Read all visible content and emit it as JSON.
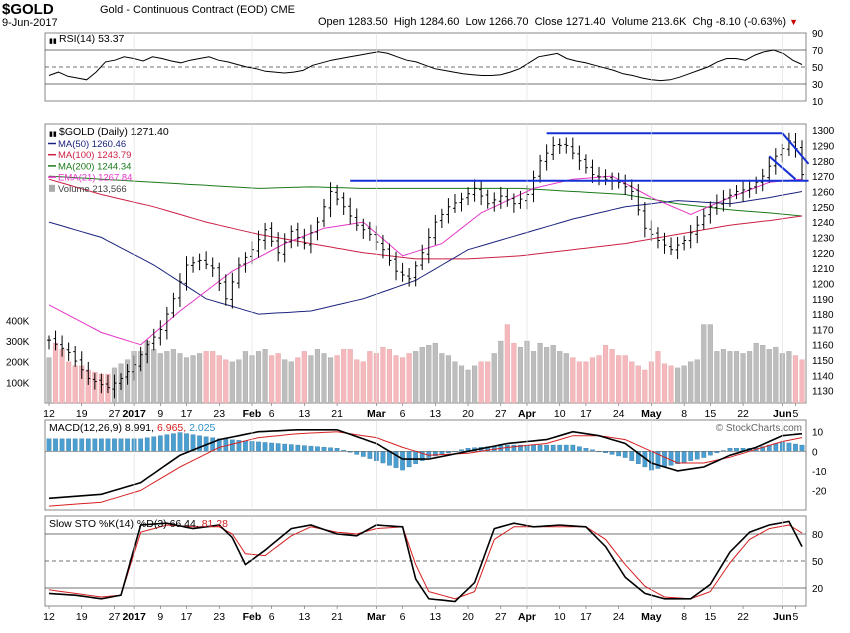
{
  "header": {
    "symbol": "$GOLD",
    "description": "Gold - Continuous Contract (EOD)",
    "exchange": "CME",
    "date": "9-Jun-2017",
    "open_label": "Open",
    "open": "1283.50",
    "high_label": "High",
    "high": "1284.60",
    "low_label": "Low",
    "low": "1266.70",
    "close_label": "Close",
    "close": "1271.40",
    "volume_label": "Volume",
    "volume": "213.6K",
    "chg_label": "Chg",
    "chg": "-8.10 (-0.63%)"
  },
  "watermark": "© StockCharts.com",
  "colors": {
    "price": "#000000",
    "ma50": "#1a237e",
    "ma100": "#cc1f43",
    "ma200": "#1b7a1b",
    "ema21": "#e535c8",
    "volume_up": "#bdbdbd",
    "volume_down": "#f4b8bd",
    "trendline": "#1531d6",
    "macd_hist": "#4a9fd0"
  },
  "chart_data": [
    {
      "type": "line",
      "name_panel": "rsi",
      "title": "RSI(14) 53.37",
      "ylim": [
        10,
        90
      ],
      "y_ticks": [
        90,
        70,
        50,
        30,
        10
      ],
      "guides": [
        70,
        50,
        30
      ],
      "values": [
        40,
        44,
        39,
        37,
        35,
        44,
        56,
        58,
        62,
        60,
        57,
        62,
        60,
        57,
        55,
        58,
        60,
        62,
        58,
        56,
        53,
        50,
        48,
        45,
        44,
        43,
        44,
        46,
        52,
        55,
        58,
        60,
        62,
        64,
        66,
        68,
        66,
        62,
        58,
        56,
        52,
        48,
        46,
        44,
        42,
        41,
        40,
        40,
        41,
        44,
        48,
        55,
        62,
        64,
        66,
        60,
        57,
        55,
        52,
        49,
        46,
        42,
        40,
        37,
        35,
        34,
        35,
        38,
        42,
        46,
        50,
        56,
        60,
        60,
        58,
        64,
        68,
        70,
        66,
        58,
        53
      ]
    },
    {
      "type": "line",
      "name_panel": "price",
      "title": "$GOLD (Daily) 1271.40",
      "ylim": [
        1122,
        1304
      ],
      "y_ticks": [
        1300,
        1290,
        1280,
        1270,
        1260,
        1250,
        1240,
        1230,
        1220,
        1210,
        1200,
        1190,
        1180,
        1170,
        1160,
        1150,
        1140,
        1130
      ],
      "legend": [
        {
          "label": "MA(50) 1260.46",
          "key": "ma50"
        },
        {
          "label": "MA(100) 1243.79",
          "key": "ma100"
        },
        {
          "label": "MA(200) 1244.34",
          "key": "ma200"
        },
        {
          "label": "EMA(21) 1267.84",
          "key": "ema21"
        },
        {
          "label": "Volume 213,566",
          "key": "volume"
        }
      ],
      "close_anchors": [
        [
          0,
          1163
        ],
        [
          3,
          1155
        ],
        [
          6,
          1138
        ],
        [
          9,
          1132
        ],
        [
          11,
          1138
        ],
        [
          13,
          1147
        ],
        [
          15,
          1160
        ],
        [
          17,
          1170
        ],
        [
          19,
          1190
        ],
        [
          21,
          1212
        ],
        [
          23,
          1215
        ],
        [
          25,
          1210
        ],
        [
          27,
          1190
        ],
        [
          29,
          1212
        ],
        [
          31,
          1222
        ],
        [
          33,
          1235
        ],
        [
          35,
          1220
        ],
        [
          37,
          1234
        ],
        [
          39,
          1226
        ],
        [
          41,
          1240
        ],
        [
          43,
          1260
        ],
        [
          45,
          1250
        ],
        [
          47,
          1238
        ],
        [
          49,
          1232
        ],
        [
          51,
          1222
        ],
        [
          53,
          1208
        ],
        [
          55,
          1203
        ],
        [
          57,
          1220
        ],
        [
          59,
          1240
        ],
        [
          61,
          1250
        ],
        [
          63,
          1255
        ],
        [
          65,
          1262
        ],
        [
          67,
          1252
        ],
        [
          69,
          1257
        ],
        [
          71,
          1252
        ],
        [
          73,
          1258
        ],
        [
          75,
          1280
        ],
        [
          77,
          1290
        ],
        [
          79,
          1290
        ],
        [
          81,
          1280
        ],
        [
          83,
          1271
        ],
        [
          85,
          1268
        ],
        [
          87,
          1266
        ],
        [
          89,
          1260
        ],
        [
          91,
          1236
        ],
        [
          93,
          1228
        ],
        [
          95,
          1222
        ],
        [
          97,
          1228
        ],
        [
          99,
          1238
        ],
        [
          101,
          1250
        ],
        [
          103,
          1255
        ],
        [
          105,
          1260
        ],
        [
          107,
          1262
        ],
        [
          109,
          1270
        ],
        [
          111,
          1283
        ],
        [
          113,
          1293
        ],
        [
          114,
          1288
        ],
        [
          115,
          1271
        ]
      ],
      "ma50": [
        [
          0,
          1240
        ],
        [
          8,
          1230
        ],
        [
          16,
          1212
        ],
        [
          24,
          1190
        ],
        [
          32,
          1180
        ],
        [
          40,
          1182
        ],
        [
          48,
          1190
        ],
        [
          56,
          1202
        ],
        [
          64,
          1222
        ],
        [
          72,
          1232
        ],
        [
          80,
          1242
        ],
        [
          88,
          1250
        ],
        [
          96,
          1254
        ],
        [
          104,
          1252
        ],
        [
          110,
          1256
        ],
        [
          115,
          1260
        ]
      ],
      "ma100": [
        [
          0,
          1268
        ],
        [
          8,
          1258
        ],
        [
          16,
          1250
        ],
        [
          24,
          1240
        ],
        [
          32,
          1232
        ],
        [
          40,
          1226
        ],
        [
          48,
          1220
        ],
        [
          56,
          1216
        ],
        [
          64,
          1216
        ],
        [
          72,
          1218
        ],
        [
          80,
          1222
        ],
        [
          88,
          1226
        ],
        [
          96,
          1232
        ],
        [
          104,
          1238
        ],
        [
          110,
          1241
        ],
        [
          115,
          1244
        ]
      ],
      "ma200": [
        [
          0,
          1270
        ],
        [
          8,
          1268
        ],
        [
          16,
          1266
        ],
        [
          24,
          1264
        ],
        [
          32,
          1262
        ],
        [
          40,
          1263
        ],
        [
          48,
          1262
        ],
        [
          56,
          1262
        ],
        [
          64,
          1262
        ],
        [
          72,
          1262
        ],
        [
          80,
          1260
        ],
        [
          88,
          1258
        ],
        [
          96,
          1252
        ],
        [
          104,
          1248
        ],
        [
          110,
          1246
        ],
        [
          115,
          1244
        ]
      ],
      "ema21": [
        [
          0,
          1186
        ],
        [
          8,
          1168
        ],
        [
          14,
          1160
        ],
        [
          20,
          1182
        ],
        [
          28,
          1208
        ],
        [
          36,
          1226
        ],
        [
          42,
          1236
        ],
        [
          48,
          1240
        ],
        [
          54,
          1218
        ],
        [
          60,
          1226
        ],
        [
          66,
          1246
        ],
        [
          74,
          1262
        ],
        [
          80,
          1268
        ],
        [
          86,
          1270
        ],
        [
          92,
          1256
        ],
        [
          98,
          1245
        ],
        [
          104,
          1256
        ],
        [
          110,
          1266
        ],
        [
          115,
          1268
        ]
      ],
      "trendlines": [
        {
          "from": [
            46,
            1267
          ],
          "to": [
            116,
            1267
          ]
        },
        {
          "from": [
            76,
            1298
          ],
          "to": [
            112,
            1298
          ]
        },
        {
          "from": [
            112,
            1298
          ],
          "to": [
            116,
            1278
          ]
        },
        {
          "from": [
            110,
            1283
          ],
          "to": [
            114,
            1268
          ]
        }
      ],
      "volume_axis_labels": [
        "400K",
        "300K",
        "200K",
        "100K"
      ],
      "volume_max": 460,
      "volume": [
        220,
        290,
        260,
        200,
        180,
        180,
        160,
        150,
        140,
        140,
        170,
        190,
        210,
        250,
        250,
        300,
        260,
        240,
        250,
        260,
        240,
        220,
        230,
        240,
        250,
        250,
        230,
        210,
        200,
        210,
        250,
        230,
        250,
        260,
        230,
        240,
        210,
        200,
        220,
        250,
        230,
        260,
        240,
        220,
        230,
        260,
        260,
        210,
        200,
        250,
        240,
        270,
        260,
        230,
        220,
        240,
        250,
        270,
        280,
        290,
        240,
        230,
        200,
        180,
        160,
        180,
        200,
        200,
        240,
        300,
        380,
        290,
        270,
        300,
        250,
        290,
        270,
        280,
        250,
        240,
        220,
        200,
        200,
        220,
        230,
        280,
        260,
        230,
        230,
        200,
        180,
        160,
        200,
        250,
        190,
        180,
        170,
        180,
        200,
        210,
        380,
        380,
        250,
        260,
        250,
        250,
        240,
        250,
        290,
        280,
        260,
        270,
        240,
        250,
        230,
        210
      ]
    },
    {
      "type": "line",
      "name_panel": "macd",
      "title": "MACD(12,26,9) 8.991, 6.965, 2.025",
      "series_values": {
        "macd": "8.991",
        "signal": "6.965",
        "hist": "2.025"
      },
      "ylim": [
        -30,
        16
      ],
      "y_ticks": [
        10,
        0,
        -10,
        -20
      ],
      "macd": [
        [
          0,
          -24
        ],
        [
          8,
          -22
        ],
        [
          14,
          -16
        ],
        [
          20,
          -2
        ],
        [
          26,
          6
        ],
        [
          32,
          10
        ],
        [
          38,
          11
        ],
        [
          44,
          11
        ],
        [
          50,
          4
        ],
        [
          54,
          -4
        ],
        [
          58,
          -4
        ],
        [
          64,
          0
        ],
        [
          70,
          4
        ],
        [
          76,
          6
        ],
        [
          80,
          10
        ],
        [
          84,
          8
        ],
        [
          88,
          4
        ],
        [
          92,
          -6
        ],
        [
          96,
          -10
        ],
        [
          100,
          -8
        ],
        [
          104,
          -2
        ],
        [
          108,
          2
        ],
        [
          112,
          8
        ],
        [
          115,
          9
        ]
      ],
      "signal": [
        [
          0,
          -28
        ],
        [
          8,
          -26
        ],
        [
          14,
          -20
        ],
        [
          20,
          -8
        ],
        [
          26,
          2
        ],
        [
          32,
          7
        ],
        [
          38,
          9
        ],
        [
          44,
          10
        ],
        [
          50,
          7
        ],
        [
          54,
          2
        ],
        [
          58,
          -2
        ],
        [
          64,
          -1
        ],
        [
          70,
          2
        ],
        [
          76,
          4
        ],
        [
          80,
          8
        ],
        [
          84,
          8
        ],
        [
          88,
          6
        ],
        [
          92,
          0
        ],
        [
          96,
          -6
        ],
        [
          100,
          -6
        ],
        [
          104,
          -3
        ],
        [
          108,
          1
        ],
        [
          112,
          5
        ],
        [
          115,
          7
        ]
      ]
    },
    {
      "type": "line",
      "name_panel": "sto",
      "title": "Slow STO %K(14) %D(3) 66.44, 81.28",
      "ylim": [
        0,
        100
      ],
      "y_ticks": [
        80,
        50,
        20
      ],
      "guides": [
        80,
        50,
        20
      ],
      "k": [
        [
          0,
          14
        ],
        [
          4,
          12
        ],
        [
          8,
          8
        ],
        [
          11,
          12
        ],
        [
          14,
          90
        ],
        [
          18,
          92
        ],
        [
          22,
          86
        ],
        [
          26,
          90
        ],
        [
          28,
          76
        ],
        [
          30,
          46
        ],
        [
          33,
          62
        ],
        [
          37,
          86
        ],
        [
          40,
          90
        ],
        [
          44,
          80
        ],
        [
          47,
          78
        ],
        [
          50,
          90
        ],
        [
          54,
          88
        ],
        [
          56,
          30
        ],
        [
          58,
          8
        ],
        [
          62,
          5
        ],
        [
          65,
          26
        ],
        [
          68,
          86
        ],
        [
          71,
          92
        ],
        [
          74,
          88
        ],
        [
          78,
          90
        ],
        [
          82,
          88
        ],
        [
          85,
          66
        ],
        [
          88,
          32
        ],
        [
          91,
          14
        ],
        [
          94,
          8
        ],
        [
          98,
          8
        ],
        [
          101,
          24
        ],
        [
          104,
          60
        ],
        [
          107,
          82
        ],
        [
          110,
          90
        ],
        [
          113,
          94
        ],
        [
          115,
          66
        ]
      ],
      "d": [
        [
          0,
          18
        ],
        [
          4,
          14
        ],
        [
          8,
          10
        ],
        [
          11,
          12
        ],
        [
          14,
          82
        ],
        [
          18,
          90
        ],
        [
          22,
          88
        ],
        [
          26,
          88
        ],
        [
          28,
          80
        ],
        [
          30,
          58
        ],
        [
          33,
          56
        ],
        [
          37,
          78
        ],
        [
          40,
          88
        ],
        [
          44,
          82
        ],
        [
          47,
          80
        ],
        [
          50,
          86
        ],
        [
          54,
          88
        ],
        [
          56,
          46
        ],
        [
          58,
          16
        ],
        [
          62,
          8
        ],
        [
          65,
          16
        ],
        [
          68,
          74
        ],
        [
          71,
          88
        ],
        [
          74,
          88
        ],
        [
          78,
          88
        ],
        [
          82,
          88
        ],
        [
          85,
          74
        ],
        [
          88,
          46
        ],
        [
          91,
          22
        ],
        [
          94,
          10
        ],
        [
          98,
          8
        ],
        [
          101,
          16
        ],
        [
          104,
          48
        ],
        [
          107,
          74
        ],
        [
          110,
          86
        ],
        [
          113,
          90
        ],
        [
          115,
          81
        ]
      ]
    }
  ],
  "x_axis": {
    "labels": [
      {
        "i": 0,
        "text": "12"
      },
      {
        "i": 5,
        "text": "19"
      },
      {
        "i": 10,
        "text": "27"
      },
      {
        "i": 13,
        "text": "2017",
        "bold": true
      },
      {
        "i": 17,
        "text": "9"
      },
      {
        "i": 21,
        "text": "17"
      },
      {
        "i": 26,
        "text": "23"
      },
      {
        "i": 31,
        "text": "Feb",
        "bold": true
      },
      {
        "i": 34,
        "text": "6"
      },
      {
        "i": 39,
        "text": "13"
      },
      {
        "i": 44,
        "text": "21"
      },
      {
        "i": 50,
        "text": "Mar",
        "bold": true
      },
      {
        "i": 54,
        "text": "6"
      },
      {
        "i": 59,
        "text": "13"
      },
      {
        "i": 64,
        "text": "20"
      },
      {
        "i": 69,
        "text": "27"
      },
      {
        "i": 73,
        "text": "Apr",
        "bold": true
      },
      {
        "i": 78,
        "text": "10"
      },
      {
        "i": 82,
        "text": "17"
      },
      {
        "i": 87,
        "text": "24"
      },
      {
        "i": 92,
        "text": "May",
        "bold": true
      },
      {
        "i": 97,
        "text": "8"
      },
      {
        "i": 101,
        "text": "15"
      },
      {
        "i": 106,
        "text": "22"
      },
      {
        "i": 112,
        "text": "Jun",
        "bold": true
      },
      {
        "i": 114,
        "text": "5"
      }
    ]
  }
}
